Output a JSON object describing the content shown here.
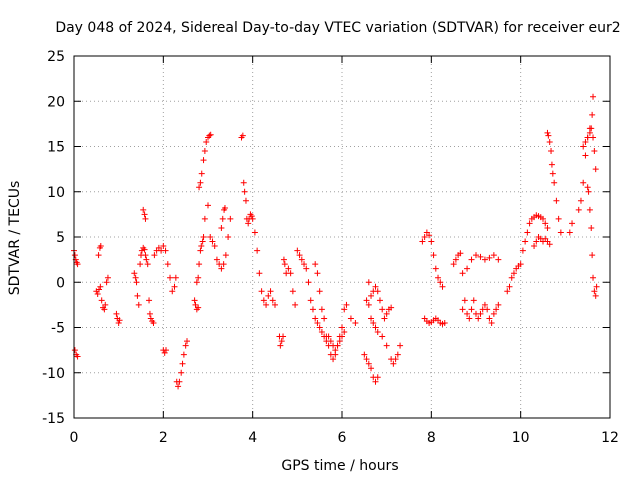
{
  "chart_data": {
    "type": "scatter",
    "title": "Day 048 of 2024, Sidereal Day-to-day VTEC variation (SDTVAR) for receiver eur2",
    "xlabel": "GPS time / hours",
    "ylabel": "SDTVAR / TECUs",
    "xlim": [
      0,
      12
    ],
    "ylim": [
      -15,
      25
    ],
    "x_ticks": [
      "0",
      "2",
      "4",
      "6",
      "8",
      "10",
      "12"
    ],
    "y_ticks": [
      "-15",
      "-10",
      "-5",
      "0",
      "5",
      "10",
      "15",
      "20",
      "25"
    ],
    "grid": true,
    "marker": "+",
    "color": "#ff0000",
    "series": [
      {
        "name": "SDTVAR",
        "x": [
          0.0,
          0.02,
          0.04,
          0.06,
          0.08,
          0.02,
          0.05,
          0.08,
          0.5,
          0.53,
          0.56,
          0.59,
          0.55,
          0.58,
          0.6,
          0.62,
          0.65,
          0.68,
          0.7,
          0.73,
          0.76,
          0.95,
          0.97,
          1.0,
          1.02,
          1.35,
          1.38,
          1.4,
          1.42,
          1.45,
          1.48,
          1.5,
          1.52,
          1.55,
          1.58,
          1.6,
          1.62,
          1.65,
          1.68,
          1.7,
          1.72,
          1.75,
          1.78,
          1.55,
          1.58,
          1.6,
          1.8,
          1.85,
          1.9,
          1.95,
          2.0,
          2.05,
          2.1,
          2.15,
          2.0,
          2.03,
          2.06,
          2.2,
          2.25,
          2.28,
          2.3,
          2.33,
          2.36,
          2.4,
          2.43,
          2.46,
          2.5,
          2.53,
          2.7,
          2.72,
          2.75,
          2.78,
          2.8,
          2.83,
          2.86,
          2.9,
          2.93,
          2.96,
          3.0,
          3.03,
          3.06,
          2.75,
          2.78,
          2.8,
          2.83,
          2.85,
          2.88,
          2.9,
          2.93,
          3.0,
          3.05,
          3.1,
          3.15,
          3.2,
          3.25,
          3.3,
          3.35,
          3.4,
          3.45,
          3.5,
          3.3,
          3.33,
          3.36,
          3.38,
          3.75,
          3.78,
          3.8,
          3.82,
          3.85,
          3.87,
          3.9,
          3.92,
          3.95,
          3.98,
          4.0,
          4.05,
          4.1,
          4.15,
          4.2,
          4.25,
          4.3,
          4.35,
          4.4,
          4.45,
          4.5,
          4.6,
          4.62,
          4.65,
          4.68,
          4.7,
          4.72,
          4.75,
          4.8,
          4.85,
          4.9,
          4.95,
          5.0,
          5.05,
          5.1,
          5.15,
          5.2,
          5.25,
          5.3,
          5.35,
          5.4,
          5.45,
          5.5,
          5.55,
          5.6,
          5.65,
          5.7,
          5.75,
          5.8,
          5.85,
          5.9,
          5.95,
          6.0,
          6.05,
          5.4,
          5.45,
          5.5,
          5.55,
          5.6,
          5.65,
          5.7,
          5.75,
          5.8,
          5.85,
          5.9,
          5.95,
          6.0,
          6.05,
          6.1,
          6.2,
          6.3,
          6.5,
          6.55,
          6.6,
          6.65,
          6.7,
          6.75,
          6.8,
          6.55,
          6.6,
          6.65,
          6.7,
          6.75,
          6.8,
          6.85,
          6.9,
          6.95,
          7.0,
          7.05,
          7.1,
          6.6,
          6.65,
          6.7,
          6.75,
          6.8,
          6.9,
          7.0,
          7.1,
          7.15,
          7.2,
          7.25,
          7.3,
          7.8,
          7.85,
          7.9,
          7.95,
          8.0,
          8.05,
          8.1,
          8.15,
          8.2,
          8.25,
          7.85,
          7.9,
          7.95,
          8.0,
          8.05,
          8.1,
          8.15,
          8.2,
          8.25,
          8.3,
          8.5,
          8.55,
          8.6,
          8.65,
          8.7,
          8.75,
          8.8,
          8.85,
          8.9,
          8.95,
          9.0,
          9.05,
          9.1,
          9.15,
          9.2,
          9.25,
          9.3,
          9.35,
          9.4,
          9.45,
          9.5,
          8.7,
          8.8,
          8.9,
          9.0,
          9.1,
          9.2,
          9.3,
          9.4,
          9.5,
          9.7,
          9.75,
          9.8,
          9.85,
          9.9,
          9.95,
          10.0,
          10.05,
          10.1,
          10.15,
          10.2,
          10.25,
          10.3,
          10.35,
          10.4,
          10.45,
          10.5,
          10.55,
          10.6,
          10.3,
          10.35,
          10.4,
          10.45,
          10.5,
          10.55,
          10.6,
          10.65,
          10.6,
          10.62,
          10.65,
          10.68,
          10.7,
          10.72,
          10.75,
          10.8,
          10.85,
          10.9,
          11.1,
          11.15,
          11.3,
          11.35,
          11.4,
          11.45,
          11.5,
          11.55,
          11.6,
          11.62,
          11.5,
          11.52,
          11.55,
          11.58,
          11.6,
          11.62,
          11.65,
          11.68,
          11.7,
          11.4,
          11.45,
          11.5,
          11.55,
          11.58,
          11.62,
          11.65,
          11.68
        ],
        "y": [
          3.5,
          3.0,
          2.5,
          2.2,
          2.0,
          -7.5,
          -8.0,
          -8.2,
          -1.0,
          -1.3,
          -0.8,
          -0.5,
          3.0,
          3.8,
          4.0,
          -2.0,
          -2.8,
          -3.0,
          -2.5,
          0.0,
          0.5,
          -3.5,
          -4.0,
          -4.5,
          -4.2,
          1.0,
          0.5,
          0.0,
          -1.5,
          -2.5,
          2.0,
          3.0,
          3.5,
          3.8,
          3.6,
          3.0,
          2.5,
          2.0,
          -2.0,
          -3.5,
          -4.0,
          -4.3,
          -4.5,
          8.0,
          7.5,
          7.0,
          3.0,
          3.5,
          3.8,
          3.5,
          4.0,
          3.5,
          2.0,
          0.5,
          -7.5,
          -7.8,
          -7.5,
          -1.0,
          -0.5,
          0.5,
          -11.0,
          -11.5,
          -11.0,
          -10.0,
          -9.0,
          -8.0,
          -7.0,
          -6.5,
          -2.0,
          -2.5,
          -3.0,
          -2.8,
          10.5,
          11.0,
          12.0,
          13.5,
          14.5,
          15.5,
          16.0,
          16.2,
          16.3,
          0.0,
          0.5,
          2.0,
          3.5,
          4.0,
          4.5,
          5.0,
          7.0,
          8.5,
          5.0,
          4.5,
          4.0,
          2.5,
          2.0,
          1.5,
          2.0,
          3.0,
          5.0,
          7.0,
          6.0,
          7.0,
          8.0,
          8.2,
          16.0,
          16.2,
          11.0,
          10.0,
          9.0,
          7.0,
          6.5,
          7.0,
          7.5,
          7.3,
          7.0,
          5.5,
          3.5,
          1.0,
          -1.0,
          -2.0,
          -2.5,
          -1.5,
          -1.0,
          -2.0,
          -2.5,
          -6.0,
          -7.0,
          -6.5,
          -6.0,
          2.5,
          2.0,
          1.0,
          1.5,
          1.0,
          -1.0,
          -2.5,
          3.5,
          3.0,
          2.5,
          2.0,
          1.5,
          0.0,
          -2.0,
          -3.0,
          -4.0,
          -4.5,
          -5.0,
          -5.5,
          -6.0,
          -6.5,
          -6.0,
          -6.5,
          -7.0,
          -7.5,
          -7.0,
          -6.5,
          -6.0,
          -5.5,
          2.0,
          1.0,
          -1.0,
          -3.0,
          -4.0,
          -6.0,
          -7.0,
          -8.0,
          -8.5,
          -8.0,
          -7.0,
          -6.0,
          -5.0,
          -3.0,
          -2.5,
          -4.0,
          -4.5,
          -8.0,
          -8.5,
          -9.0,
          -9.5,
          -10.5,
          -11.0,
          -10.5,
          -2.0,
          -2.5,
          -1.5,
          -1.0,
          -0.5,
          -1.0,
          -2.0,
          -3.0,
          -4.0,
          -3.5,
          -3.0,
          -2.8,
          0.0,
          -4.0,
          -4.5,
          -5.0,
          -5.5,
          -6.0,
          -7.0,
          -8.5,
          -9.0,
          -8.5,
          -8.0,
          -7.0,
          4.5,
          5.0,
          5.5,
          5.2,
          4.5,
          3.0,
          1.5,
          0.5,
          0.0,
          -0.5,
          -4.0,
          -4.3,
          -4.5,
          -4.4,
          -4.2,
          -4.0,
          -4.2,
          -4.5,
          -4.6,
          -4.5,
          2.0,
          2.5,
          3.0,
          3.2,
          -3.0,
          -2.0,
          -3.5,
          -4.0,
          -3.0,
          -2.0,
          -3.5,
          -4.0,
          -3.5,
          -3.0,
          -2.5,
          -3.0,
          -4.0,
          -4.5,
          -3.5,
          -3.0,
          -2.5,
          1.0,
          1.5,
          2.5,
          3.0,
          2.8,
          2.5,
          2.7,
          3.0,
          2.5,
          -1.0,
          -0.5,
          0.5,
          1.0,
          1.5,
          1.8,
          2.0,
          3.5,
          4.5,
          5.5,
          6.5,
          7.0,
          7.2,
          7.4,
          7.3,
          7.2,
          7.0,
          6.5,
          6.0,
          4.0,
          4.5,
          5.0,
          4.8,
          4.5,
          4.8,
          4.5,
          4.2,
          16.5,
          16.2,
          15.5,
          14.5,
          13.0,
          12.0,
          11.0,
          9.0,
          7.0,
          5.5,
          5.5,
          6.5,
          8.0,
          9.0,
          11.0,
          14.0,
          16.0,
          17.0,
          18.5,
          20.5,
          10.5,
          10.0,
          8.0,
          6.0,
          3.0,
          0.5,
          -1.0,
          -1.5,
          -0.5,
          15.0,
          15.5,
          16.0,
          16.5,
          17.0,
          16.0,
          14.5,
          12.5
        ]
      }
    ]
  }
}
